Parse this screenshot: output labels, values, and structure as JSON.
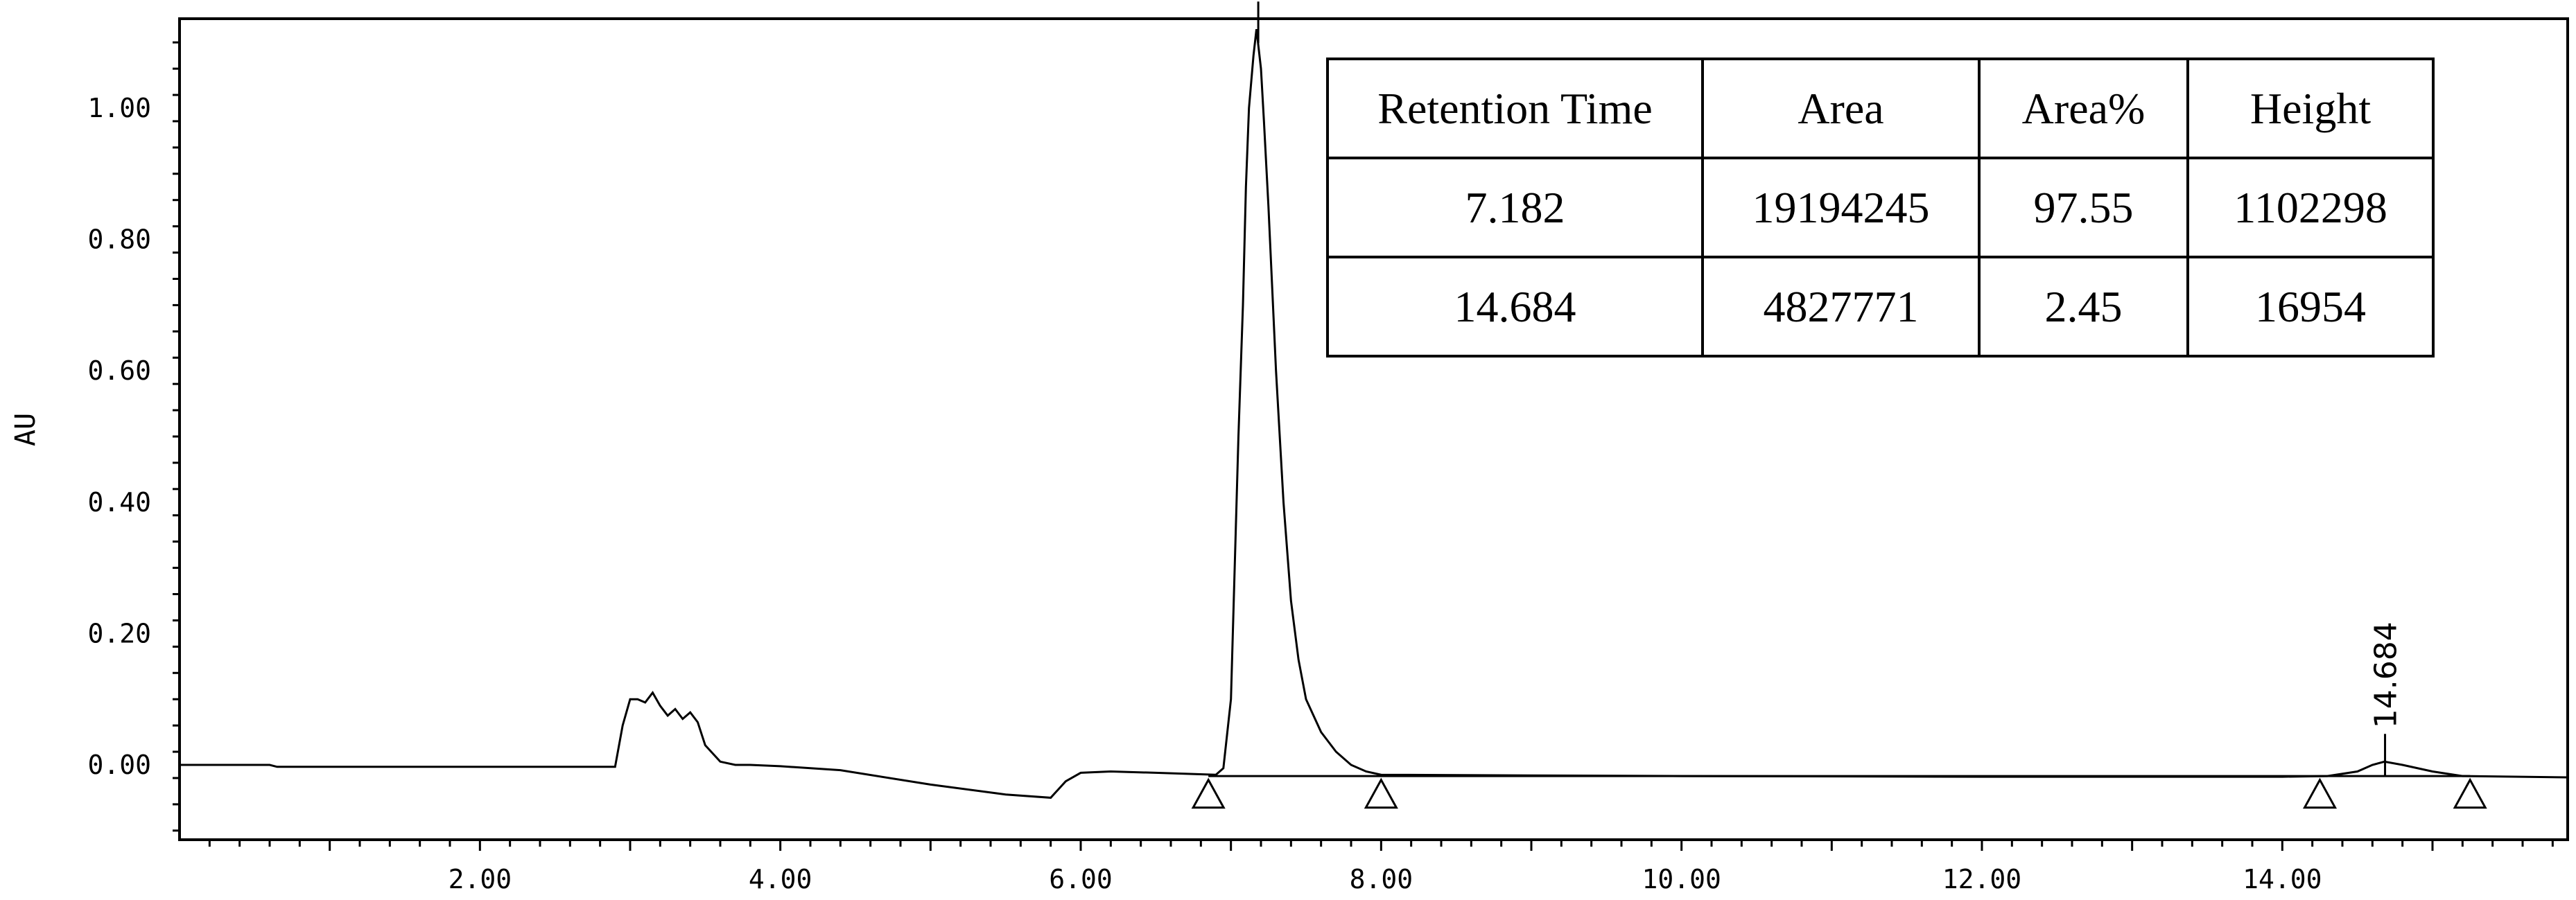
{
  "chart_data": {
    "type": "line",
    "title": "",
    "xlabel": "",
    "ylabel": "AU",
    "xlim": [
      0,
      15.9
    ],
    "ylim": [
      -0.11,
      1.15
    ],
    "x_ticks": [
      {
        "value": 2,
        "label": "2.00"
      },
      {
        "value": 4,
        "label": "4.00"
      },
      {
        "value": 6,
        "label": "6.00"
      },
      {
        "value": 8,
        "label": "8.00"
      },
      {
        "value": 10,
        "label": "10.00"
      },
      {
        "value": 12,
        "label": "12.00"
      },
      {
        "value": 14,
        "label": "14.00"
      }
    ],
    "y_ticks": [
      {
        "value": 0.0,
        "label": "0.00"
      },
      {
        "value": 0.2,
        "label": "0.20"
      },
      {
        "value": 0.4,
        "label": "0.40"
      },
      {
        "value": 0.6,
        "label": "0.60"
      },
      {
        "value": 0.8,
        "label": "0.80"
      },
      {
        "value": 1.0,
        "label": "1.00"
      }
    ],
    "series": [
      {
        "x": [
          0.0,
          0.6,
          0.65,
          2.9,
          2.95,
          3.0,
          3.05,
          3.1,
          3.15,
          3.2,
          3.25,
          3.3,
          3.35,
          3.4,
          3.45,
          3.5,
          3.6,
          3.7,
          3.8,
          4.0,
          4.4,
          5.0,
          5.5,
          5.8,
          5.9,
          6.0,
          6.2,
          6.5,
          6.9,
          6.95,
          7.0,
          7.05,
          7.08,
          7.1,
          7.12,
          7.15,
          7.17,
          7.18,
          7.2,
          7.22,
          7.25,
          7.3,
          7.35,
          7.4,
          7.45,
          7.5,
          7.6,
          7.7,
          7.8,
          7.9,
          8.0,
          9.0,
          10.0,
          12.0,
          14.0,
          14.3,
          14.5,
          14.6,
          14.68,
          14.8,
          15.0,
          15.2,
          15.9
        ],
        "y": [
          0.0,
          0.0,
          -0.003,
          -0.003,
          0.06,
          0.1,
          0.1,
          0.095,
          0.11,
          0.09,
          0.075,
          0.085,
          0.07,
          0.08,
          0.065,
          0.03,
          0.005,
          0.0,
          0.0,
          -0.002,
          -0.008,
          -0.03,
          -0.045,
          -0.05,
          -0.025,
          -0.012,
          -0.01,
          -0.012,
          -0.015,
          -0.005,
          0.1,
          0.5,
          0.7,
          0.88,
          1.0,
          1.08,
          1.12,
          1.1,
          1.06,
          0.98,
          0.85,
          0.6,
          0.4,
          0.25,
          0.16,
          0.1,
          0.05,
          0.02,
          0.0,
          -0.01,
          -0.015,
          -0.016,
          -0.017,
          -0.018,
          -0.018,
          -0.017,
          -0.01,
          0.0,
          0.005,
          0.0,
          -0.01,
          -0.017,
          -0.019
        ]
      }
    ],
    "peaks": [
      {
        "rt_label": "7.182",
        "x": 7.182,
        "y": 1.12
      },
      {
        "rt_label": "14.684",
        "x": 14.684,
        "y": 0.005
      }
    ],
    "integration_markers_x": [
      6.85,
      8.0,
      14.25,
      15.25
    ],
    "table": {
      "headers": [
        "Retention Time",
        "Area",
        "Area%",
        "Height"
      ],
      "rows": [
        [
          "7.182",
          "19194245",
          "97.55",
          "1102298"
        ],
        [
          "14.684",
          "4827771",
          "2.45",
          "16954"
        ]
      ]
    }
  }
}
